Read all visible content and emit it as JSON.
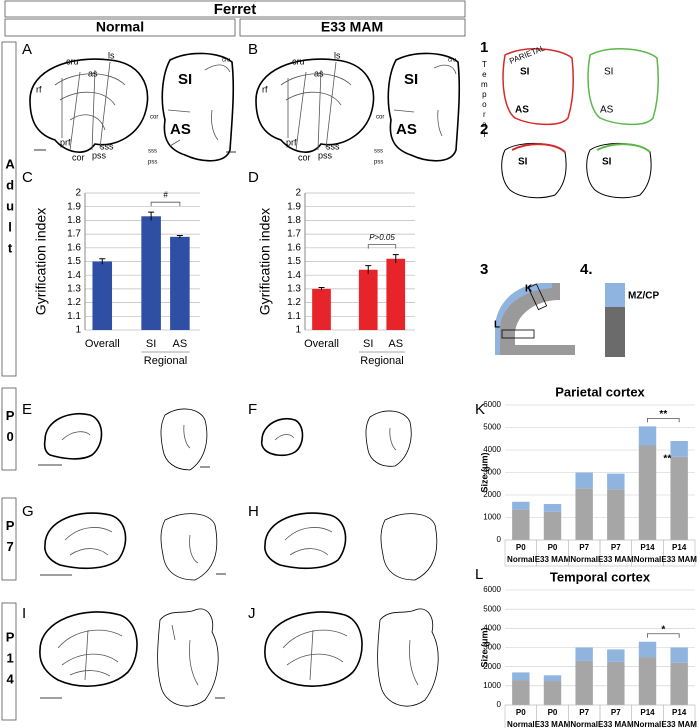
{
  "header": {
    "title": "Ferret",
    "columns": [
      "Normal",
      "E33 MAM"
    ]
  },
  "rows": [
    "Adult",
    "P0",
    "P7",
    "P14"
  ],
  "panel_letters": [
    "A",
    "B",
    "C",
    "D",
    "E",
    "F",
    "G",
    "H",
    "I",
    "J",
    "K",
    "L"
  ],
  "panel_numbers": [
    "1",
    "2",
    "3",
    "4."
  ],
  "brain_labels": {
    "A": [
      "rf",
      "cru",
      "as",
      "ls",
      "prf",
      "cor",
      "pss",
      "sss",
      "SI",
      "AS",
      "cru",
      "cor",
      "sss",
      "pss"
    ],
    "B": [
      "rf",
      "cru",
      "as",
      "ls",
      "prf",
      "cor",
      "pss",
      "sss",
      "SI",
      "AS",
      "cru",
      "cor",
      "sss",
      "pss"
    ]
  },
  "schematic": {
    "parietal": "PARIETAL",
    "temporal": "Temporal",
    "panel1": [
      "SI",
      "AS",
      "SI",
      "AS"
    ],
    "panel2": [
      "SI",
      "SI"
    ],
    "panel3": [
      "K",
      "L"
    ],
    "panel4": "MZ/CP"
  },
  "chart_data": [
    {
      "type": "bar",
      "categories": [
        "Overall",
        "SI",
        "AS"
      ],
      "group_label": "Regional",
      "values": [
        1.5,
        1.83,
        1.68
      ],
      "errors": [
        0.02,
        0.03,
        0.01
      ],
      "color": "#2e4fa3",
      "ylim": [
        1,
        2
      ],
      "yticks": [
        1,
        1.1,
        1.2,
        1.3,
        1.4,
        1.5,
        1.6,
        1.7,
        1.8,
        1.9,
        2
      ],
      "y_label": "Gyrification index",
      "annotation": "#",
      "grid": true
    },
    {
      "type": "bar",
      "categories": [
        "Overall",
        "SI",
        "AS"
      ],
      "group_label": "Regional",
      "values": [
        1.3,
        1.44,
        1.52
      ],
      "errors": [
        0.01,
        0.03,
        0.03
      ],
      "color": "#e8242b",
      "ylim": [
        1,
        2
      ],
      "yticks": [
        1,
        1.1,
        1.2,
        1.3,
        1.4,
        1.5,
        1.6,
        1.7,
        1.8,
        1.9,
        2
      ],
      "y_label": "Gyrification index",
      "annotation": "P>0.05",
      "grid": true
    },
    {
      "type": "stacked_bar",
      "title": "Parietal cortex",
      "categories": [
        "P0",
        "P0",
        "P7",
        "P7",
        "P14",
        "P14"
      ],
      "groups": [
        "Normal",
        "E33 MAM",
        "Normal",
        "E33 MAM",
        "Normal",
        "E33 MAM"
      ],
      "label_colors": [
        "#000000",
        "#e8242b",
        "#000000",
        "#e8242b",
        "#000000",
        "#e8242b"
      ],
      "series": [
        {
          "color": "#a6a6a6",
          "values": [
            1350,
            1250,
            2300,
            2250,
            4200,
            3700
          ]
        },
        {
          "color": "#8fb4e0",
          "values": [
            350,
            350,
            700,
            700,
            850,
            700
          ]
        }
      ],
      "ylim": [
        0,
        6000
      ],
      "yticks": [
        0,
        1000,
        2000,
        3000,
        4000,
        5000,
        6000
      ],
      "y_label": "Size (μm)",
      "annotations": [
        "**",
        "**"
      ],
      "grid": true
    },
    {
      "type": "stacked_bar",
      "title": "Temporal cortex",
      "categories": [
        "P0",
        "P0",
        "P7",
        "P7",
        "P14",
        "P14"
      ],
      "groups": [
        "Normal",
        "E33 MAM",
        "Normal",
        "E33 MAM",
        "Normal",
        "E33 MAM"
      ],
      "label_colors": [
        "#000000",
        "#e8242b",
        "#000000",
        "#e8242b",
        "#000000",
        "#e8242b"
      ],
      "series": [
        {
          "color": "#a6a6a6",
          "values": [
            1300,
            1250,
            2300,
            2250,
            2500,
            2200
          ]
        },
        {
          "color": "#8fb4e0",
          "values": [
            400,
            300,
            700,
            650,
            800,
            800
          ]
        }
      ],
      "ylim": [
        0,
        6000
      ],
      "yticks": [
        0,
        1000,
        2000,
        3000,
        4000,
        5000,
        6000
      ],
      "y_label": "Size (μm)",
      "annotations": [
        "*"
      ],
      "grid": true
    }
  ]
}
